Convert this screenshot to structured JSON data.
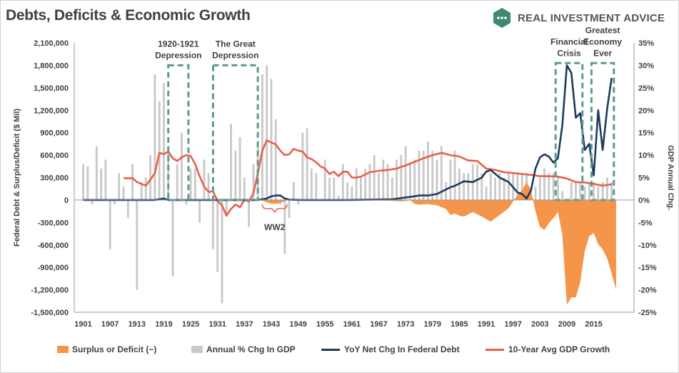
{
  "header": {
    "title": "Debts, Deficits & Economic Growth",
    "brand": "REAL INVESTMENT ADVICE"
  },
  "colors": {
    "deficit": "#f4954a",
    "gdp_bars": "#c8c8c8",
    "debt_line": "#1f3a5f",
    "avg_line": "#e8604a",
    "annotation_box": "#5d9b8a",
    "text": "#404040"
  },
  "chart_data": {
    "type": "bar",
    "title": "Debts, Deficits & Economic Growth",
    "ylabel_left": "Federal Debt & Surplus/Deficit ($ Mil)",
    "ylabel_right": "GDP Annual Chg.",
    "left_ylim": [
      -1500000,
      2100000
    ],
    "left_ticks": [
      "2,100,000",
      "1,800,000",
      "1,500,000",
      "1,200,000",
      "900,000",
      "600,000",
      "300,000",
      "0",
      "-300,000",
      "-600,000",
      "-900,000",
      "-1,200,000",
      "-1,500,000"
    ],
    "left_tick_values": [
      2100000,
      1800000,
      1500000,
      1200000,
      900000,
      600000,
      300000,
      0,
      -300000,
      -600000,
      -900000,
      -1200000,
      -1500000
    ],
    "right_ylim": [
      -25,
      35
    ],
    "right_ticks": [
      "35%",
      "30%",
      "25%",
      "20%",
      "15%",
      "10%",
      "5%",
      "0%",
      "-5%",
      "-10%",
      "-15%",
      "-20%",
      "-25%"
    ],
    "right_tick_values": [
      35,
      30,
      25,
      20,
      15,
      10,
      5,
      0,
      -5,
      -10,
      -15,
      -20,
      -25
    ],
    "x_ticks": [
      "1901",
      "1907",
      "1913",
      "1919",
      "1925",
      "1931",
      "1937",
      "1943",
      "1949",
      "1955",
      "1961",
      "1967",
      "1973",
      "1979",
      "1985",
      "1991",
      "1997",
      "2003",
      "2009",
      "2015"
    ],
    "x_tick_values": [
      1901,
      1907,
      1913,
      1919,
      1925,
      1931,
      1937,
      1943,
      1949,
      1955,
      1961,
      1967,
      1973,
      1979,
      1985,
      1991,
      1997,
      2003,
      2009,
      2015
    ],
    "xlim": [
      1899,
      2024
    ],
    "grid": false,
    "legend_placement": "bottom",
    "series": [
      {
        "name": "Surplus or Deficit (−)",
        "kind": "area",
        "axis": "left",
        "x": [
          1901,
          1940,
          1941,
          1942,
          1943,
          1944,
          1945,
          1946,
          1947,
          1948,
          1949,
          1950,
          1960,
          1965,
          1970,
          1972,
          1974,
          1975,
          1976,
          1978,
          1980,
          1982,
          1983,
          1984,
          1985,
          1986,
          1988,
          1990,
          1992,
          1994,
          1996,
          1997,
          1998,
          1999,
          2000,
          2001,
          2002,
          2003,
          2004,
          2005,
          2006,
          2007,
          2008,
          2009,
          2010,
          2011,
          2012,
          2013,
          2014,
          2015,
          2016,
          2017,
          2018,
          2019,
          2020
        ],
        "values": [
          0,
          0,
          -10000,
          -30000,
          -50000,
          -50000,
          -40000,
          -15000,
          5000,
          10000,
          0,
          -5000,
          0,
          -5000,
          -10000,
          -20000,
          -5000,
          -50000,
          -60000,
          -55000,
          -70000,
          -120000,
          -200000,
          -180000,
          -210000,
          -220000,
          -160000,
          -220000,
          -290000,
          -200000,
          -110000,
          -20000,
          70000,
          130000,
          240000,
          130000,
          -150000,
          -360000,
          -400000,
          -310000,
          -240000,
          -160000,
          -460000,
          -1400000,
          -1300000,
          -1300000,
          -1100000,
          -680000,
          -480000,
          -440000,
          -590000,
          -660000,
          -780000,
          -980000,
          -1200000
        ]
      },
      {
        "name": "Annual % Chg In GDP",
        "kind": "bar",
        "axis": "right",
        "x": [
          1901,
          1902,
          1903,
          1904,
          1905,
          1906,
          1907,
          1908,
          1909,
          1910,
          1911,
          1912,
          1913,
          1914,
          1915,
          1916,
          1917,
          1918,
          1919,
          1920,
          1921,
          1922,
          1923,
          1924,
          1925,
          1926,
          1927,
          1928,
          1929,
          1930,
          1931,
          1932,
          1933,
          1934,
          1935,
          1936,
          1937,
          1938,
          1939,
          1940,
          1941,
          1942,
          1943,
          1944,
          1945,
          1946,
          1947,
          1948,
          1949,
          1950,
          1951,
          1952,
          1953,
          1954,
          1955,
          1956,
          1957,
          1958,
          1959,
          1960,
          1961,
          1962,
          1963,
          1964,
          1965,
          1966,
          1967,
          1968,
          1969,
          1970,
          1971,
          1972,
          1973,
          1974,
          1975,
          1976,
          1977,
          1978,
          1979,
          1980,
          1981,
          1982,
          1983,
          1984,
          1985,
          1986,
          1987,
          1988,
          1989,
          1990,
          1991,
          1992,
          1993,
          1994,
          1995,
          1996,
          1997,
          1998,
          1999,
          2000,
          2001,
          2002,
          2003,
          2004,
          2005,
          2006,
          2007,
          2008,
          2009,
          2010,
          2011,
          2012,
          2013,
          2014,
          2015,
          2016,
          2017,
          2018,
          2019
        ],
        "values": [
          8,
          7.5,
          -1,
          12,
          7,
          9,
          -11,
          -1,
          6,
          3,
          -4,
          8,
          -20,
          4,
          5,
          10,
          28,
          22,
          26,
          12,
          -17,
          8,
          15,
          -1,
          7,
          7,
          -5,
          9,
          6,
          -11,
          -16,
          -23,
          -3,
          17,
          11,
          14,
          5,
          -6,
          8,
          13,
          28,
          30,
          27,
          18,
          -1,
          -12,
          -4,
          4,
          -1,
          15,
          16,
          7,
          6,
          0,
          9,
          5,
          5,
          1,
          8,
          4,
          3,
          7,
          5,
          7,
          8,
          10,
          6,
          9,
          8,
          5,
          9,
          10,
          12,
          8,
          9,
          11,
          11,
          13,
          11,
          9,
          12,
          4,
          9,
          11,
          7,
          6,
          6,
          8,
          8,
          6,
          3,
          6,
          5,
          6,
          5,
          6,
          6,
          6,
          6,
          6,
          3,
          3,
          5,
          7,
          6,
          6,
          5,
          2,
          -2,
          4,
          4,
          4,
          3,
          4,
          4,
          3,
          4,
          5,
          4
        ]
      },
      {
        "name": "YoY Net Chg In Federal Debt",
        "kind": "line",
        "axis": "left",
        "x": [
          1901,
          1917,
          1918,
          1919,
          1920,
          1940,
          1941,
          1942,
          1943,
          1944,
          1945,
          1946,
          1947,
          1950,
          1960,
          1970,
          1975,
          1976,
          1978,
          1980,
          1983,
          1984,
          1986,
          1988,
          1990,
          1991,
          1992,
          1994,
          1996,
          1998,
          1999,
          2000,
          2001,
          2002,
          2003,
          2004,
          2005,
          2006,
          2007,
          2008,
          2009,
          2010,
          2011,
          2012,
          2013,
          2014,
          2015,
          2016,
          2017,
          2018,
          2019
        ],
        "values": [
          0,
          0,
          10000,
          20000,
          0,
          0,
          10000,
          20000,
          50000,
          60000,
          60000,
          20000,
          5000,
          0,
          0,
          10000,
          50000,
          60000,
          60000,
          80000,
          170000,
          190000,
          250000,
          240000,
          300000,
          380000,
          400000,
          300000,
          240000,
          100000,
          80000,
          20000,
          130000,
          420000,
          570000,
          610000,
          580000,
          500000,
          560000,
          1000000,
          1800000,
          1700000,
          1100000,
          1160000,
          670000,
          750000,
          330000,
          1200000,
          670000,
          1220000,
          1630000
        ]
      },
      {
        "name": "10-Year Avg GDP Growth",
        "kind": "line",
        "axis": "right",
        "x": [
          1910,
          1911,
          1912,
          1913,
          1914,
          1915,
          1916,
          1917,
          1918,
          1919,
          1920,
          1921,
          1922,
          1923,
          1924,
          1925,
          1926,
          1927,
          1928,
          1929,
          1930,
          1931,
          1932,
          1933,
          1934,
          1935,
          1936,
          1937,
          1938,
          1939,
          1940,
          1941,
          1942,
          1943,
          1944,
          1945,
          1946,
          1947,
          1948,
          1949,
          1950,
          1951,
          1952,
          1953,
          1954,
          1955,
          1956,
          1957,
          1958,
          1959,
          1960,
          1961,
          1962,
          1963,
          1965,
          1967,
          1969,
          1971,
          1973,
          1975,
          1977,
          1979,
          1981,
          1983,
          1985,
          1987,
          1989,
          1991,
          1993,
          1995,
          1997,
          1999,
          2001,
          2003,
          2005,
          2007,
          2009,
          2011,
          2013,
          2015,
          2017,
          2019
        ],
        "values": [
          4.9,
          4.8,
          4.9,
          4,
          3.6,
          3.2,
          4.5,
          6,
          10.5,
          10.2,
          10.8,
          9.3,
          8.7,
          9.5,
          10,
          9.8,
          8,
          5.3,
          3,
          1.8,
          1.9,
          -0.2,
          -1.2,
          -3.5,
          -2,
          -1,
          -1.6,
          0,
          -0.3,
          1.5,
          6,
          11,
          13.3,
          12.8,
          12.4,
          11,
          10,
          10.2,
          11.4,
          11,
          10.8,
          9.5,
          9.1,
          8.4,
          7.5,
          7,
          5.8,
          6.3,
          5.3,
          6.3,
          6.3,
          5,
          5,
          5.2,
          6.2,
          6.5,
          6.7,
          7,
          7.7,
          8.5,
          9.3,
          10,
          10.5,
          10,
          9.7,
          8.8,
          8.7,
          7,
          6.7,
          6.2,
          6,
          5.8,
          5.6,
          5.3,
          5.3,
          5.2,
          4.8,
          4,
          3.9,
          3.6,
          3.2,
          3.5
        ]
      }
    ],
    "annotations": [
      {
        "text_lines": [
          "1920-1921",
          "Depression"
        ],
        "x_range": [
          1920,
          1924.5
        ],
        "y_range_right": [
          0,
          30
        ]
      },
      {
        "text_lines": [
          "The Great",
          "Depression"
        ],
        "x_range": [
          1930,
          1940
        ],
        "y_range_right": [
          0,
          30
        ]
      },
      {
        "text_lines": [
          "Financial",
          "Crisis"
        ],
        "x_range": [
          2006.5,
          2012.5
        ],
        "y_range_right": [
          0,
          30.5
        ]
      },
      {
        "text_lines": [
          "Greatest",
          "Economy",
          "Ever"
        ],
        "x_range": [
          2014.5,
          2019.5
        ],
        "y_range_right": [
          0,
          30.5
        ]
      },
      {
        "text_lines": [
          "WW2"
        ],
        "bracket_x_range": [
          1941,
          1946.5
        ]
      }
    ]
  }
}
